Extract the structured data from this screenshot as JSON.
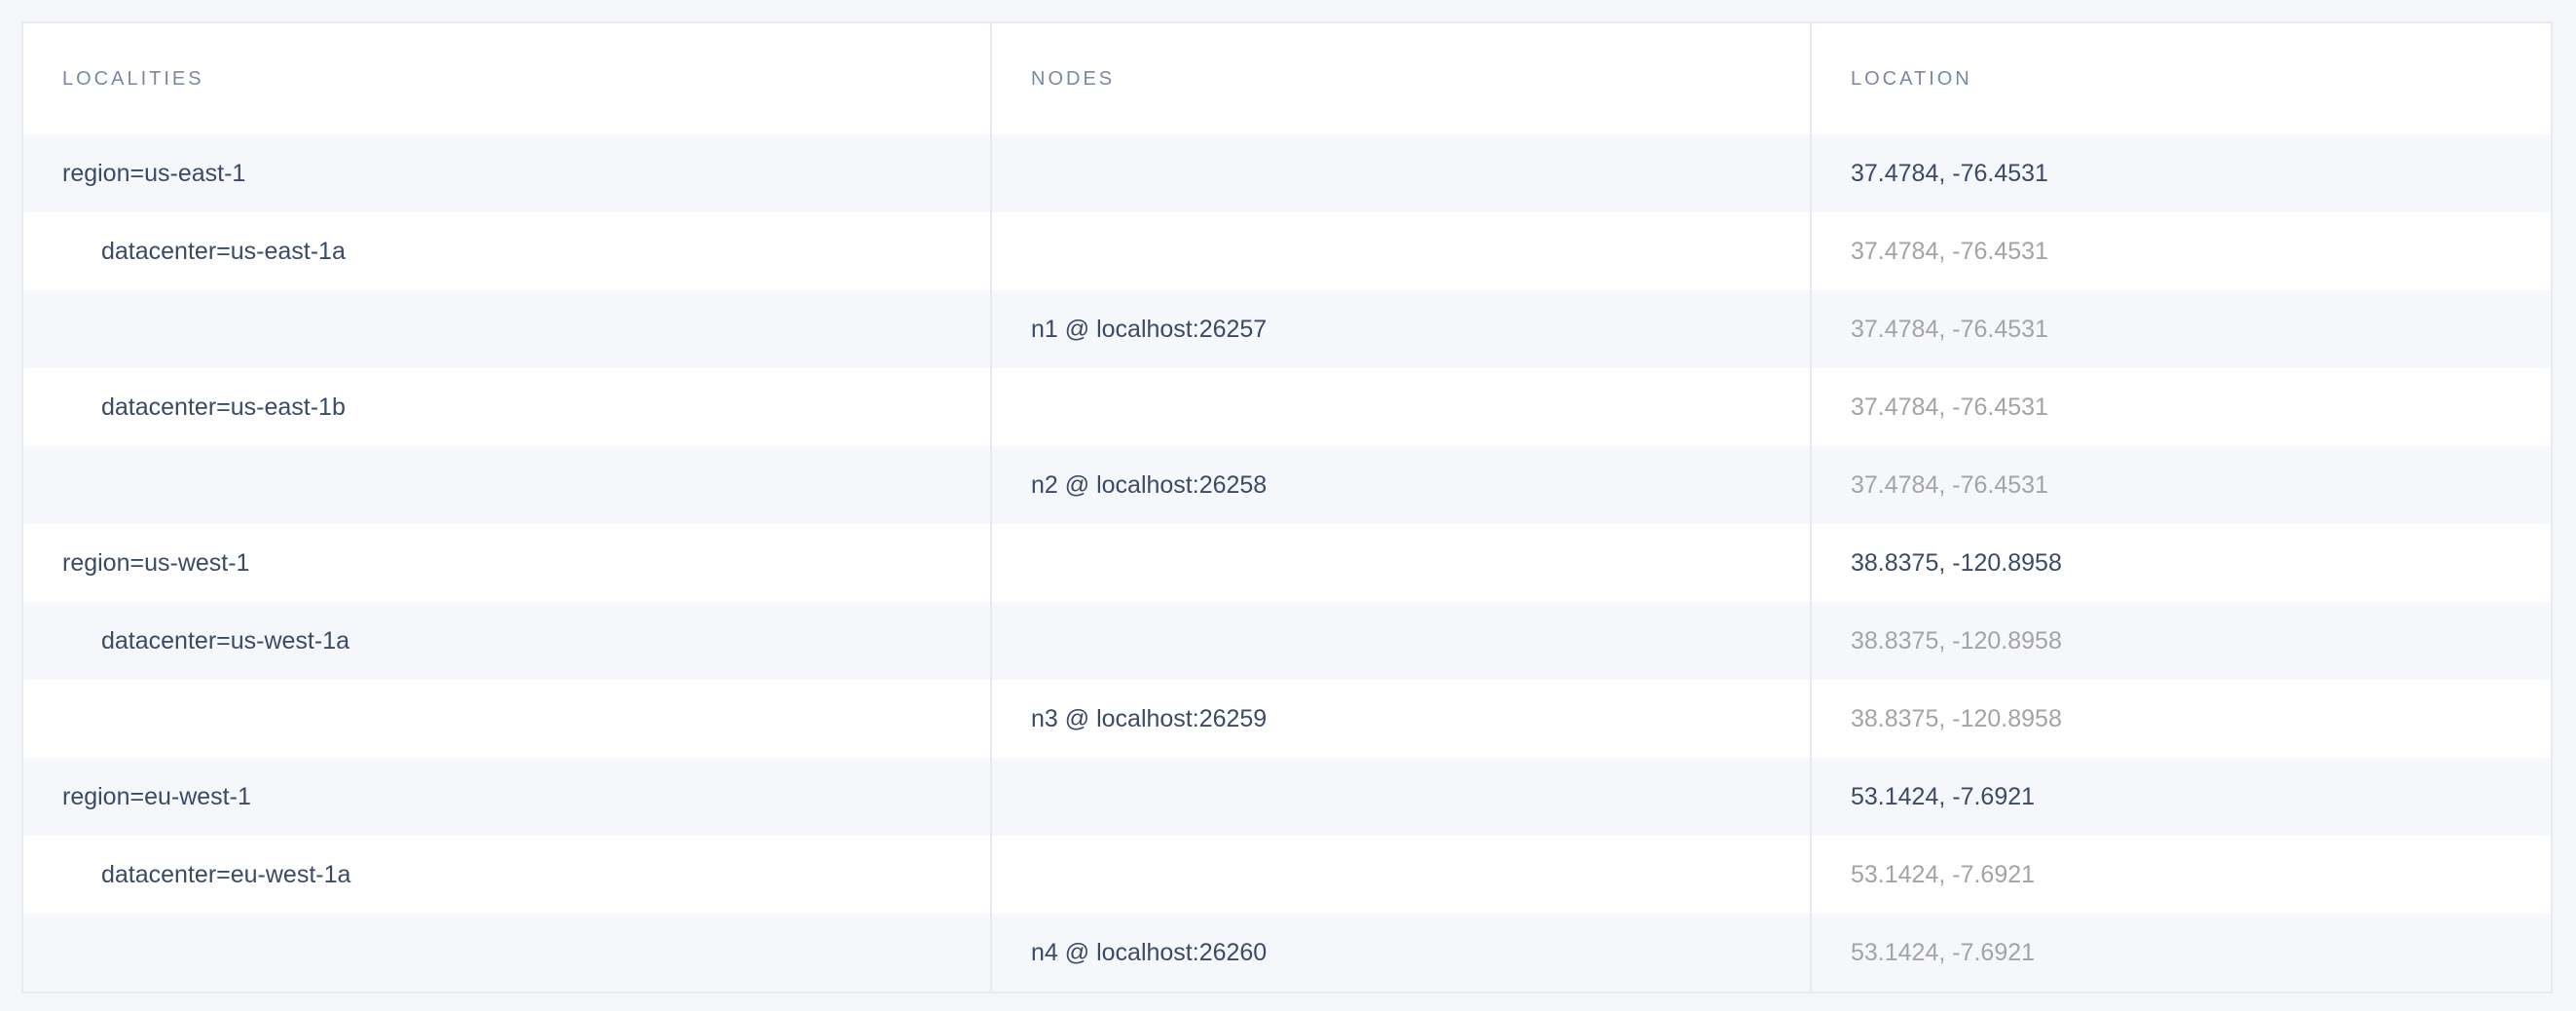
{
  "columns": [
    "LOCALITIES",
    "NODES",
    "LOCATION"
  ],
  "colors": {
    "text": "#3b4a66",
    "header": "#7c87a6",
    "muted": "#a3a3a8",
    "stripe": "#f5f7fb"
  },
  "rows": [
    {
      "locality": "region=us-east-1",
      "node": "",
      "location": "37.4784, -76.4531",
      "level": 0
    },
    {
      "locality": "datacenter=us-east-1a",
      "node": "",
      "location": "37.4784, -76.4531",
      "level": 1
    },
    {
      "locality": "",
      "node": "n1 @ localhost:26257",
      "location": "37.4784, -76.4531",
      "level": 2
    },
    {
      "locality": "datacenter=us-east-1b",
      "node": "",
      "location": "37.4784, -76.4531",
      "level": 1
    },
    {
      "locality": "",
      "node": "n2 @ localhost:26258",
      "location": "37.4784, -76.4531",
      "level": 2
    },
    {
      "locality": "region=us-west-1",
      "node": "",
      "location": "38.8375, -120.8958",
      "level": 0
    },
    {
      "locality": "datacenter=us-west-1a",
      "node": "",
      "location": "38.8375, -120.8958",
      "level": 1
    },
    {
      "locality": "",
      "node": "n3 @ localhost:26259",
      "location": "38.8375, -120.8958",
      "level": 2
    },
    {
      "locality": "region=eu-west-1",
      "node": "",
      "location": "53.1424, -7.6921",
      "level": 0
    },
    {
      "locality": "datacenter=eu-west-1a",
      "node": "",
      "location": "53.1424, -7.6921",
      "level": 1
    },
    {
      "locality": "",
      "node": "n4 @ localhost:26260",
      "location": "53.1424, -7.6921",
      "level": 2
    }
  ]
}
